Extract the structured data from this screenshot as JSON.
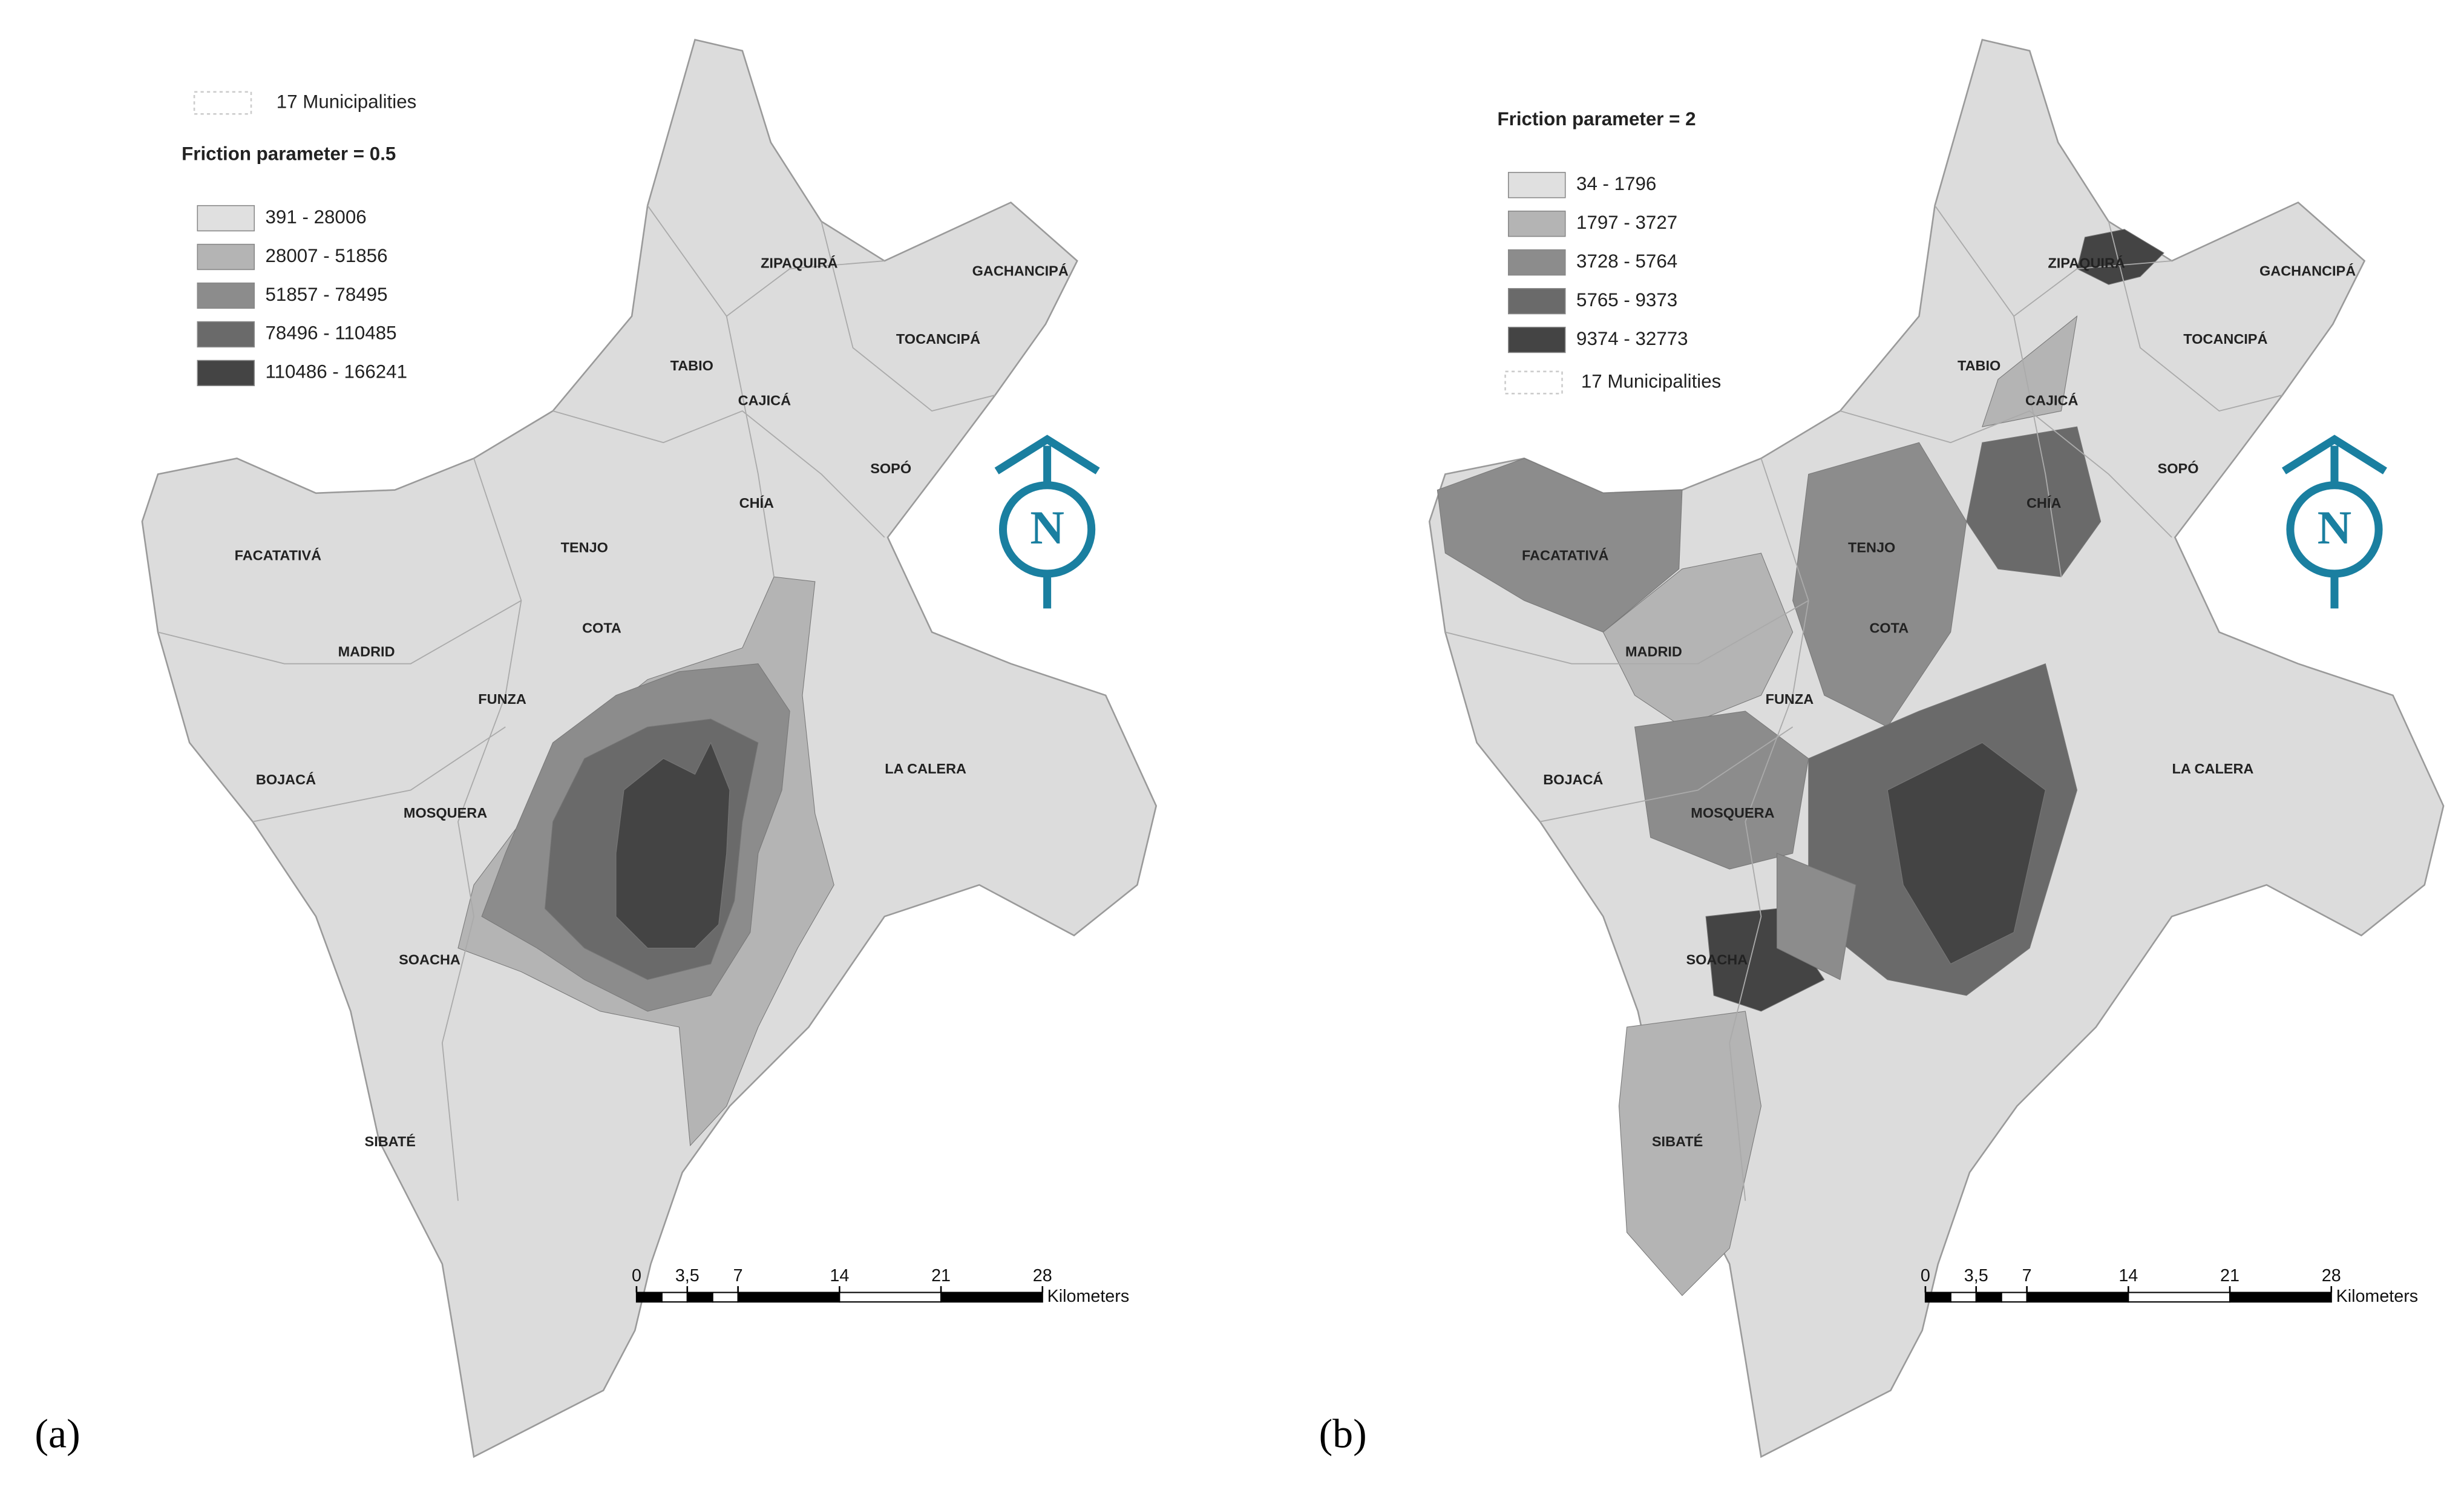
{
  "panels": [
    {
      "label": "(a)",
      "legend": {
        "title": "Friction parameter = 0.5",
        "boundary": "17 Municipalities",
        "classes": [
          "391 - 28006",
          "28007 - 51856",
          "51857 - 78495",
          "78496 - 110485",
          "110486 - 166241"
        ]
      },
      "municipalities": [
        "ZIPAQUIRÁ",
        "GACHANCIPÁ",
        "TOCANCIPÁ",
        "TABIO",
        "CAJICÁ",
        "SOPÓ",
        "CHÍA",
        "TENJO",
        "FACATATIVÁ",
        "COTA",
        "MADRID",
        "FUNZA",
        "LA CALERA",
        "BOJACÁ",
        "MOSQUERA",
        "SOACHA",
        "SIBATÉ"
      ],
      "scale_bar": {
        "ticks": [
          0,
          {
            "value": 3.5,
            "label": "3,5"
          },
          7,
          14,
          21,
          28
        ],
        "unit": "Kilometers"
      },
      "north": "N"
    },
    {
      "label": "(b)",
      "legend": {
        "title": "Friction parameter = 2",
        "boundary": "17 Municipalities",
        "classes": [
          "34 - 1796",
          "1797 - 3727",
          "3728 - 5764",
          "5765 - 9373",
          "9374 - 32773"
        ]
      },
      "municipalities": [
        "ZIPAQUIRÁ",
        "GACHANCIPÁ",
        "TOCANCIPÁ",
        "TABIO",
        "CAJICÁ",
        "SOPÓ",
        "CHÍA",
        "TENJO",
        "FACATATIVÁ",
        "COTA",
        "MADRID",
        "FUNZA",
        "LA CALERA",
        "BOJACÁ",
        "MOSQUERA",
        "SOACHA",
        "SIBATÉ"
      ],
      "scale_bar": {
        "ticks": [
          0,
          {
            "value": 3.5,
            "label": "3,5"
          },
          7,
          14,
          21,
          28
        ],
        "unit": "Kilometers"
      },
      "north": "N"
    }
  ]
}
